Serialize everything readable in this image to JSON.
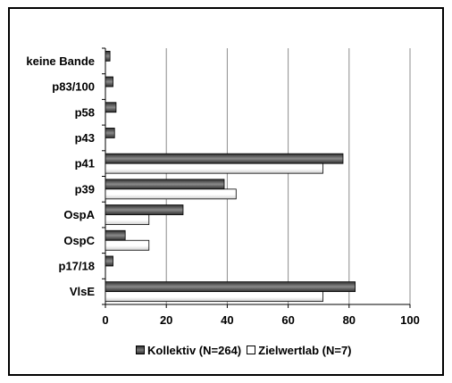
{
  "chart_data": {
    "type": "bar",
    "orientation": "horizontal",
    "categories": [
      "keine Bande",
      "p83/100",
      "p58",
      "p43",
      "p41",
      "p39",
      "OspA",
      "OspC",
      "p17/18",
      "VlsE"
    ],
    "series": [
      {
        "name": "Kollektiv (N=264)",
        "color": "#555555",
        "values": [
          1.5,
          2.5,
          3.5,
          3.0,
          78,
          39,
          25.5,
          6.5,
          2.5,
          82
        ]
      },
      {
        "name": "Zielwertlab (N=7)",
        "color": "#ffffff",
        "values": [
          0,
          0,
          0,
          0,
          71.4,
          42.9,
          14.3,
          14.3,
          0,
          71.4
        ]
      }
    ],
    "xlim": [
      0,
      100
    ],
    "xticks": [
      0,
      20,
      40,
      60,
      80,
      100
    ],
    "xlabel": "",
    "ylabel": "",
    "title": "",
    "grid": "vertical",
    "legend_position": "bottom"
  }
}
